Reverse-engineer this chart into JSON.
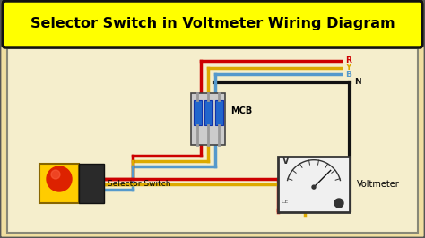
{
  "title": "Selector Switch in Voltmeter Wiring Diagram",
  "title_color": "#000000",
  "title_bg": "#ffff00",
  "title_border": "#111111",
  "bg_color": "#f0dfa0",
  "inner_bg": "#f5eecc",
  "border_color": "#555555",
  "wire_red": "#cc0000",
  "wire_yellow": "#ddaa00",
  "wire_blue": "#5599cc",
  "wire_black": "#111111",
  "label_R": "R",
  "label_Y": "Y",
  "label_B": "B",
  "label_N": "N",
  "label_MCB": "MCB",
  "label_Selector": "Selector Switch",
  "label_Voltmeter": "Voltmeter"
}
